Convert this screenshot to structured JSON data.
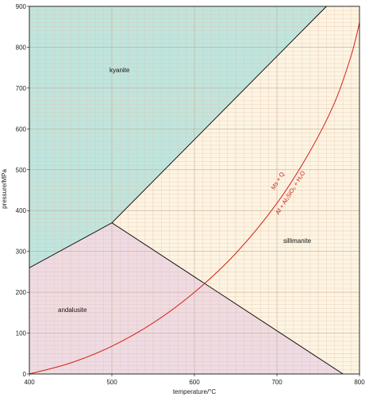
{
  "chart_data": {
    "type": "line",
    "xlabel": "temperature/°C",
    "ylabel": "pressure/MPa",
    "xlim": [
      400,
      800
    ],
    "ylim": [
      0,
      900
    ],
    "x_ticks": [
      400,
      500,
      600,
      700,
      800
    ],
    "y_ticks": [
      0,
      100,
      200,
      300,
      400,
      500,
      600,
      700,
      800,
      900
    ],
    "grid": true,
    "triple_point": {
      "x": 500,
      "y": 370
    },
    "phase_boundaries": [
      {
        "between": "kyanite/andalusite",
        "points": [
          [
            400,
            260
          ],
          [
            500,
            370
          ]
        ]
      },
      {
        "between": "kyanite/sillimanite",
        "points": [
          [
            500,
            370
          ],
          [
            760,
            900
          ]
        ]
      },
      {
        "between": "andalusite/sillimanite",
        "points": [
          [
            500,
            370
          ],
          [
            780,
            0
          ]
        ]
      }
    ],
    "regions": [
      {
        "label": "kyanite",
        "color": "#bfe5de"
      },
      {
        "label": "andalusite",
        "color": "#efdbe3"
      },
      {
        "label": "sillimanite",
        "color": "#fdf4e2"
      }
    ],
    "reaction_curve": {
      "color": "#d6201a",
      "label_top": "Ms + Q",
      "label_bottom": "Af + Al₂SiO₅ + H₂O",
      "points": [
        [
          400,
          0
        ],
        [
          450,
          27
        ],
        [
          500,
          68
        ],
        [
          550,
          125
        ],
        [
          600,
          200
        ],
        [
          650,
          295
        ],
        [
          700,
          418
        ],
        [
          740,
          545
        ],
        [
          770,
          665
        ],
        [
          790,
          780
        ],
        [
          800,
          860
        ]
      ]
    }
  }
}
